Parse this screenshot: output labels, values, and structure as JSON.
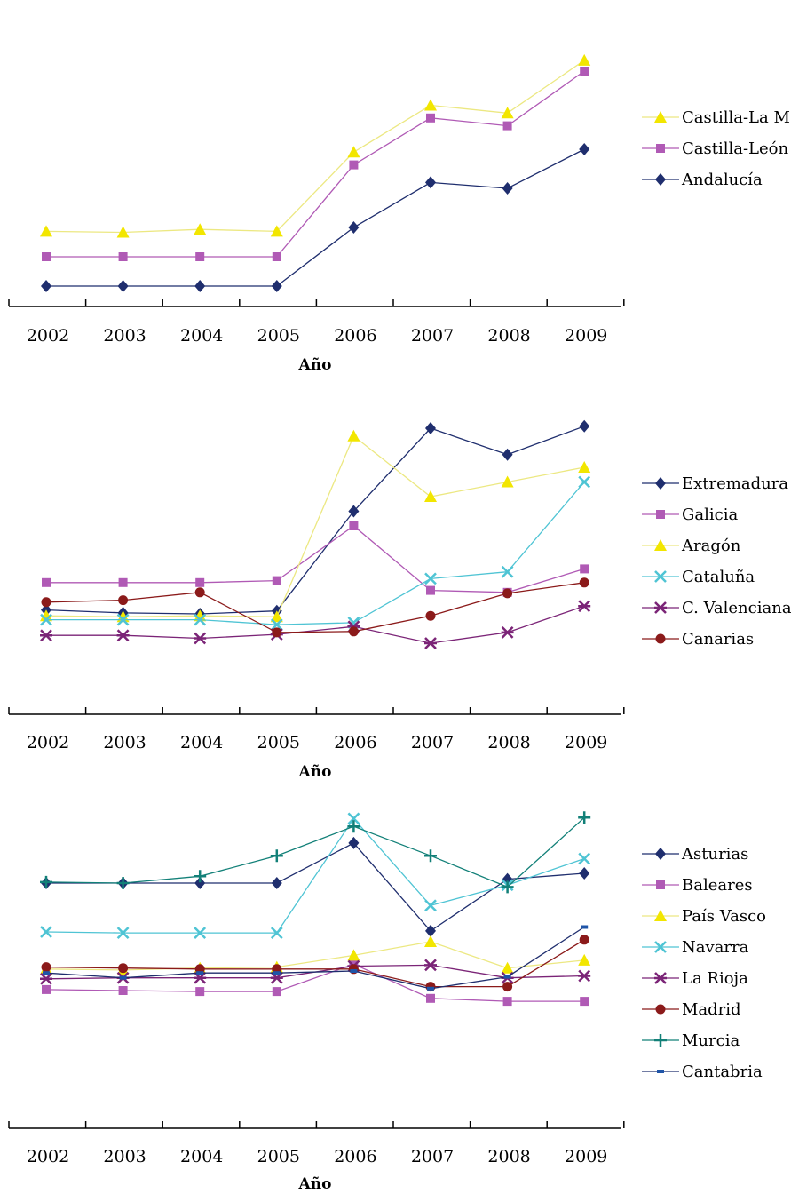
{
  "chart_data": [
    {
      "type": "line",
      "title": "",
      "xlabel": "Año",
      "ylabel": "",
      "categories": [
        "2002",
        "2003",
        "2004",
        "2005",
        "2006",
        "2007",
        "2008",
        "2009"
      ],
      "yaxis_visible": false,
      "grid": false,
      "legend_position": "right",
      "series": [
        {
          "name": "Castilla-La M.",
          "color": "#f2e600",
          "line_color": "#ece882",
          "marker": "triangle",
          "values": [
            22.4,
            22.5,
            22.2,
            22.4,
            14.3,
            9.5,
            10.3,
            4.9
          ]
        },
        {
          "name": "Castilla-León",
          "color": "#b05ab5",
          "line_color": "#b05ab5",
          "marker": "square",
          "values": [
            25.0,
            25.0,
            25.0,
            25.0,
            15.6,
            10.8,
            11.6,
            6.0
          ]
        },
        {
          "name": "Andalucía",
          "color": "#1f2e6e",
          "line_color": "#1f2e6e",
          "marker": "diamond",
          "values": [
            28.0,
            28.0,
            28.0,
            28.0,
            22.0,
            17.4,
            18.0,
            14.0
          ]
        }
      ]
    },
    {
      "type": "line",
      "title": "",
      "xlabel": "Año",
      "ylabel": "",
      "categories": [
        "2002",
        "2003",
        "2004",
        "2005",
        "2006",
        "2007",
        "2008",
        "2009"
      ],
      "yaxis_visible": false,
      "grid": false,
      "legend_position": "right",
      "series": [
        {
          "name": "Extremadura",
          "color": "#1f2e6e",
          "line_color": "#1f2e6e",
          "marker": "diamond",
          "values": [
            20.6,
            20.9,
            21.0,
            20.7,
            10.5,
            2.0,
            4.7,
            1.8
          ]
        },
        {
          "name": "Galicia",
          "color": "#b05ab5",
          "line_color": "#b05ab5",
          "marker": "square",
          "values": [
            17.8,
            17.8,
            17.8,
            17.6,
            12.0,
            18.6,
            18.8,
            16.4
          ]
        },
        {
          "name": "Aragón",
          "color": "#f2e600",
          "line_color": "#ece882",
          "marker": "triangle",
          "values": [
            21.2,
            21.3,
            21.2,
            21.3,
            2.8,
            9.0,
            7.5,
            6.0
          ]
        },
        {
          "name": "Cataluña",
          "color": "#4fc4d4",
          "line_color": "#4fc4d4",
          "marker": "x",
          "values": [
            21.6,
            21.6,
            21.6,
            22.1,
            21.9,
            17.4,
            16.7,
            7.5
          ]
        },
        {
          "name": "C. Valenciana",
          "color": "#7b2477",
          "line_color": "#7b2477",
          "marker": "asterisk",
          "values": [
            23.2,
            23.2,
            23.5,
            23.1,
            22.3,
            24.0,
            22.9,
            20.2
          ]
        },
        {
          "name": "Canarias",
          "color": "#8b1a1a",
          "line_color": "#8b1a1a",
          "marker": "circle",
          "values": [
            19.8,
            19.6,
            18.8,
            22.9,
            22.8,
            21.2,
            18.9,
            17.8
          ]
        }
      ]
    },
    {
      "type": "line",
      "title": "",
      "xlabel": "Año",
      "ylabel": "",
      "categories": [
        "2002",
        "2003",
        "2004",
        "2005",
        "2006",
        "2007",
        "2008",
        "2009"
      ],
      "yaxis_visible": false,
      "grid": false,
      "legend_position": "right",
      "series": [
        {
          "name": "Asturias",
          "color": "#1f2e6e",
          "line_color": "#1f2e6e",
          "marker": "diamond",
          "values": [
            8.0,
            8.0,
            8.0,
            8.0,
            3.9,
            12.9,
            7.6,
            7.0
          ]
        },
        {
          "name": "Baleares",
          "color": "#b05ab5",
          "line_color": "#b05ab5",
          "marker": "square",
          "values": [
            18.9,
            19.0,
            19.1,
            19.1,
            16.3,
            19.8,
            20.1,
            20.1
          ]
        },
        {
          "name": "País Vasco",
          "color": "#f2e600",
          "line_color": "#ece882",
          "marker": "triangle",
          "values": [
            16.8,
            16.9,
            16.7,
            16.6,
            15.4,
            14.0,
            16.7,
            15.9
          ]
        },
        {
          "name": "Navarra",
          "color": "#4fc4d4",
          "line_color": "#4fc4d4",
          "marker": "x",
          "values": [
            13.0,
            13.1,
            13.1,
            13.1,
            1.4,
            10.3,
            8.2,
            5.5
          ]
        },
        {
          "name": "La Rioja",
          "color": "#7b2477",
          "line_color": "#7b2477",
          "marker": "asterisk",
          "values": [
            17.8,
            17.7,
            17.7,
            17.7,
            16.5,
            16.4,
            17.7,
            17.5
          ]
        },
        {
          "name": "Madrid",
          "color": "#8b1a1a",
          "line_color": "#8b1a1a",
          "marker": "circle",
          "values": [
            16.6,
            16.7,
            16.8,
            16.8,
            16.8,
            18.6,
            18.6,
            13.8
          ]
        },
        {
          "name": "Murcia",
          "color": "#128078",
          "line_color": "#128078",
          "marker": "plus",
          "values": [
            7.9,
            8.0,
            7.3,
            5.2,
            2.2,
            5.2,
            8.4,
            1.3
          ]
        },
        {
          "name": "Cantabria",
          "color": "#1f55a8",
          "line_color": "#1f2e6e",
          "marker": "dash",
          "values": [
            17.2,
            17.7,
            17.2,
            17.2,
            17.0,
            18.8,
            17.6,
            12.5
          ]
        }
      ]
    }
  ]
}
